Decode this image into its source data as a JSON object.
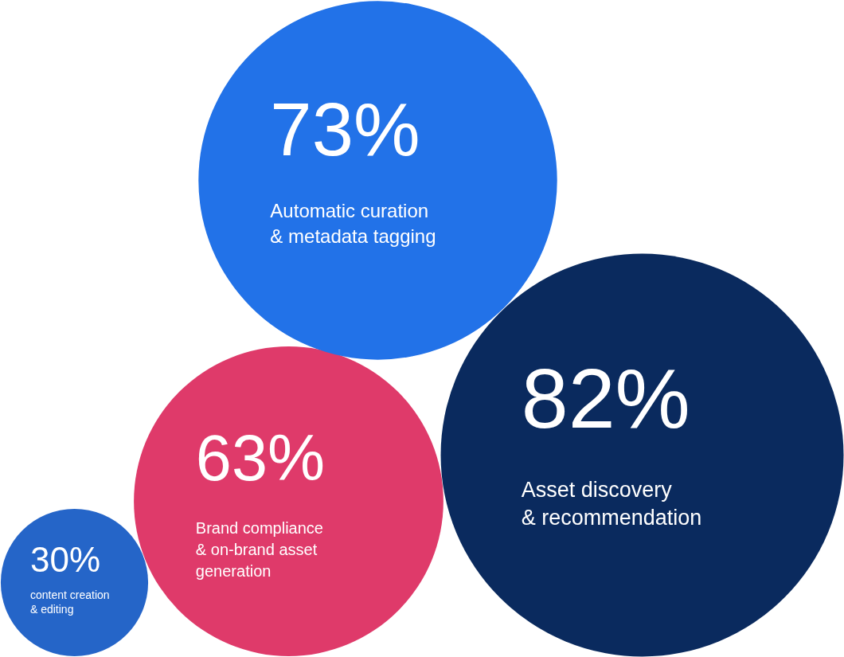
{
  "chart_data": {
    "type": "other",
    "categories": [
      "content creation\n& editing",
      "Brand compliance\n& on-brand asset\ngeneration",
      "Automatic curation\n& metadata tagging",
      "Asset discovery\n& recommendation"
    ],
    "values": [
      30,
      63,
      73,
      82
    ],
    "value_labels": [
      "30%",
      "63%",
      "73%",
      "82%"
    ],
    "colors": [
      "#2565c8",
      "#df3a6a",
      "#2272e8",
      "#0a2a5e"
    ]
  }
}
